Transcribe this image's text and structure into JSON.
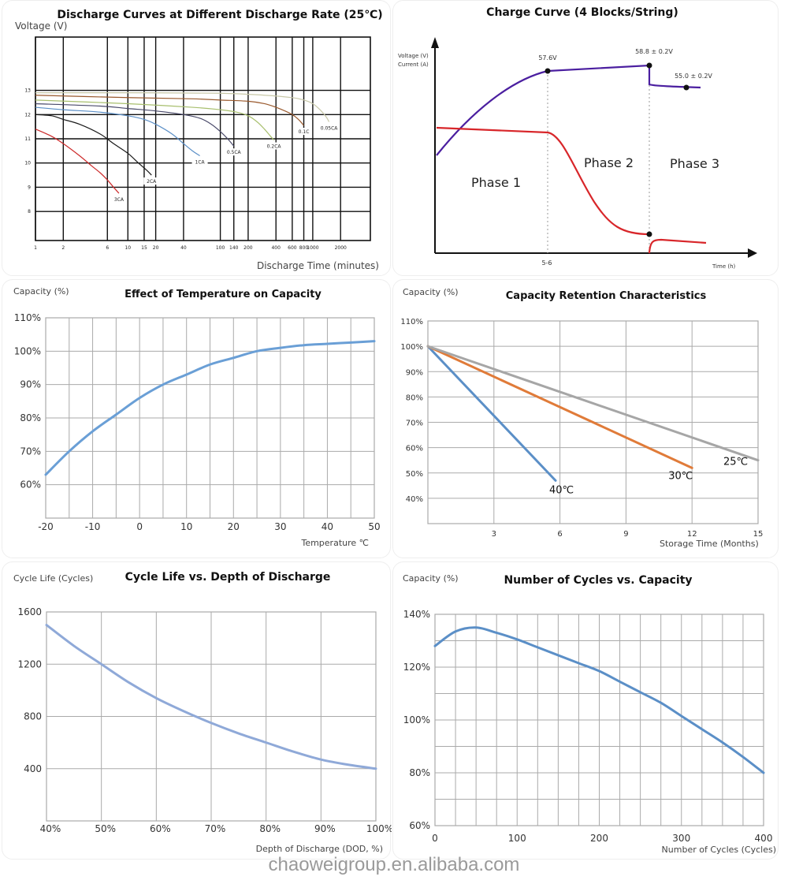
{
  "footer": {
    "watermark": "chaoweigroup.en.alibaba.com"
  },
  "chart_data": [
    {
      "id": "discharge",
      "type": "line",
      "title": "Discharge Curves at Different Discharge Rate (25℃)",
      "ylabel": "Voltage (V)",
      "xlabel": "Discharge Time (minutes)",
      "xscale": "log",
      "x_ticks": [
        1,
        2,
        6,
        10,
        15,
        20,
        40,
        100,
        140,
        200,
        400,
        600,
        800,
        1000,
        2000
      ],
      "y_ticks": [
        8,
        9,
        10,
        11,
        12,
        13
      ],
      "ylim": [
        6.8,
        15.2
      ],
      "grid": true,
      "series": [
        {
          "name": "3CA",
          "color": "#cc2a2a",
          "x": [
            1,
            1.5,
            2,
            3,
            4,
            5,
            6,
            7,
            8
          ],
          "y": [
            11.4,
            11.1,
            10.8,
            10.3,
            9.9,
            9.6,
            9.3,
            9.0,
            8.75
          ]
        },
        {
          "name": "2CA",
          "color": "#1a1a1a",
          "x": [
            1,
            1.5,
            2,
            3,
            5,
            7,
            10,
            13,
            16,
            18
          ],
          "y": [
            12.0,
            11.95,
            11.8,
            11.6,
            11.2,
            10.8,
            10.4,
            10.0,
            9.7,
            9.5
          ]
        },
        {
          "name": "1CA",
          "color": "#5b8fc7",
          "x": [
            1,
            2,
            5,
            10,
            15,
            20,
            30,
            40,
            50,
            60
          ],
          "y": [
            12.3,
            12.2,
            12.1,
            11.95,
            11.8,
            11.6,
            11.2,
            10.8,
            10.5,
            10.3
          ]
        },
        {
          "name": "0.5CA",
          "color": "#4a4a6a",
          "x": [
            1,
            5,
            10,
            20,
            40,
            60,
            80,
            100,
            120,
            140
          ],
          "y": [
            12.45,
            12.35,
            12.25,
            12.15,
            12.0,
            11.85,
            11.6,
            11.3,
            11.0,
            10.7
          ]
        },
        {
          "name": "0.2CA",
          "color": "#a8bf6e",
          "x": [
            1,
            10,
            50,
            100,
            150,
            200,
            250,
            300,
            350,
            380
          ],
          "y": [
            12.6,
            12.45,
            12.3,
            12.2,
            12.1,
            11.95,
            11.7,
            11.4,
            11.1,
            10.95
          ]
        },
        {
          "name": "0.1C",
          "color": "#9a5a2e",
          "x": [
            1,
            10,
            50,
            100,
            200,
            300,
            400,
            500,
            600,
            700,
            800
          ],
          "y": [
            12.8,
            12.7,
            12.65,
            12.6,
            12.55,
            12.45,
            12.3,
            12.15,
            12.0,
            11.8,
            11.55
          ]
        },
        {
          "name": "0.05CA",
          "color": "#c8c8a8",
          "x": [
            1,
            10,
            100,
            300,
            600,
            800,
            1000,
            1200,
            1400,
            1500
          ],
          "y": [
            12.9,
            12.9,
            12.88,
            12.8,
            12.7,
            12.6,
            12.45,
            12.2,
            11.9,
            11.7
          ]
        }
      ]
    },
    {
      "id": "charge",
      "type": "line",
      "title": "Charge Curve (4 Blocks/String)",
      "ylabel_lines": [
        "Voltage (V)",
        "Current (A)"
      ],
      "xlabel": "Time (h)",
      "x_tick_label": "5-6",
      "phases": [
        "Phase 1",
        "Phase 2",
        "Phase 3"
      ],
      "annotations": [
        "57.6V",
        "58.8 ± 0.2V",
        "55.0 ± 0.2V"
      ],
      "series": [
        {
          "name": "Voltage",
          "color": "#4b1fa0"
        },
        {
          "name": "Current",
          "color": "#d8262a"
        }
      ]
    },
    {
      "id": "temperature",
      "type": "line",
      "title": "Effect of Temperature on Capacity",
      "ylabel": "Capacity (%)",
      "xlabel": "Temperature ℃",
      "xlim": [
        -20,
        50
      ],
      "ylim": [
        50,
        110
      ],
      "x_ticks": [
        -20,
        -10,
        0,
        10,
        20,
        30,
        40,
        50
      ],
      "y_ticks": [
        60,
        70,
        80,
        90,
        100,
        110
      ],
      "grid": true,
      "series": [
        {
          "name": "Capacity",
          "color": "#6a9fd6",
          "x": [
            -20,
            -15,
            -10,
            -5,
            0,
            5,
            10,
            15,
            20,
            25,
            30,
            35,
            40,
            45,
            50
          ],
          "y": [
            63,
            70,
            76,
            81,
            86,
            90,
            93,
            96,
            98,
            100,
            101,
            101.8,
            102.2,
            102.6,
            103
          ]
        }
      ]
    },
    {
      "id": "retention",
      "type": "line",
      "title": "Capacity Retention Characteristics",
      "ylabel": "Capacity (%)",
      "xlabel": "Storage Time (Months)",
      "xlim": [
        0,
        15
      ],
      "ylim": [
        30,
        110
      ],
      "x_ticks": [
        3,
        6,
        9,
        12,
        15
      ],
      "y_ticks": [
        40,
        50,
        60,
        70,
        80,
        90,
        100,
        110
      ],
      "grid": true,
      "series": [
        {
          "name": "40℃",
          "color": "#5b8fc7",
          "x": [
            0,
            5.8
          ],
          "y": [
            100,
            47
          ]
        },
        {
          "name": "30℃",
          "color": "#e07b39",
          "x": [
            0,
            12
          ],
          "y": [
            100,
            52
          ]
        },
        {
          "name": "25℃",
          "color": "#a6a6a6",
          "x": [
            0,
            15
          ],
          "y": [
            100,
            55
          ]
        }
      ]
    },
    {
      "id": "cyclelife",
      "type": "line",
      "title": "Cycle Life vs. Depth of Discharge",
      "ylabel": "Cycle Life (Cycles)",
      "xlabel": "Depth of Discharge (DOD, %)",
      "xlim": [
        40,
        100
      ],
      "ylim": [
        0,
        1600
      ],
      "x_ticks": [
        "40%",
        "50%",
        "60%",
        "70%",
        "80%",
        "90%",
        "100%"
      ],
      "y_ticks": [
        400,
        800,
        1200,
        1600
      ],
      "grid": true,
      "series": [
        {
          "name": "Cycle Life",
          "color": "#8fa9d8",
          "x": [
            40,
            45,
            50,
            55,
            60,
            65,
            70,
            75,
            80,
            85,
            90,
            95,
            100
          ],
          "y": [
            1500,
            1340,
            1200,
            1060,
            940,
            840,
            750,
            670,
            600,
            530,
            470,
            430,
            400
          ]
        }
      ]
    },
    {
      "id": "cycles",
      "type": "line",
      "title": "Number of Cycles vs. Capacity",
      "ylabel": "Capacity (%)",
      "xlabel": "Number of Cycles (Cycles)",
      "xlim": [
        0,
        400
      ],
      "ylim": [
        60,
        140
      ],
      "x_ticks": [
        0,
        100,
        200,
        300,
        400
      ],
      "y_ticks": [
        "60%",
        "80%",
        "100%",
        "120%",
        "140%"
      ],
      "grid": true,
      "series": [
        {
          "name": "Capacity",
          "color": "#5b8fc7",
          "x": [
            0,
            25,
            50,
            75,
            100,
            125,
            150,
            175,
            200,
            225,
            250,
            275,
            300,
            325,
            350,
            375,
            400
          ],
          "y": [
            128,
            133.5,
            135,
            133,
            130.5,
            127.5,
            124.5,
            121.5,
            118.5,
            114.5,
            110.5,
            106.5,
            101.5,
            96.5,
            91.5,
            86,
            80
          ]
        }
      ]
    }
  ]
}
